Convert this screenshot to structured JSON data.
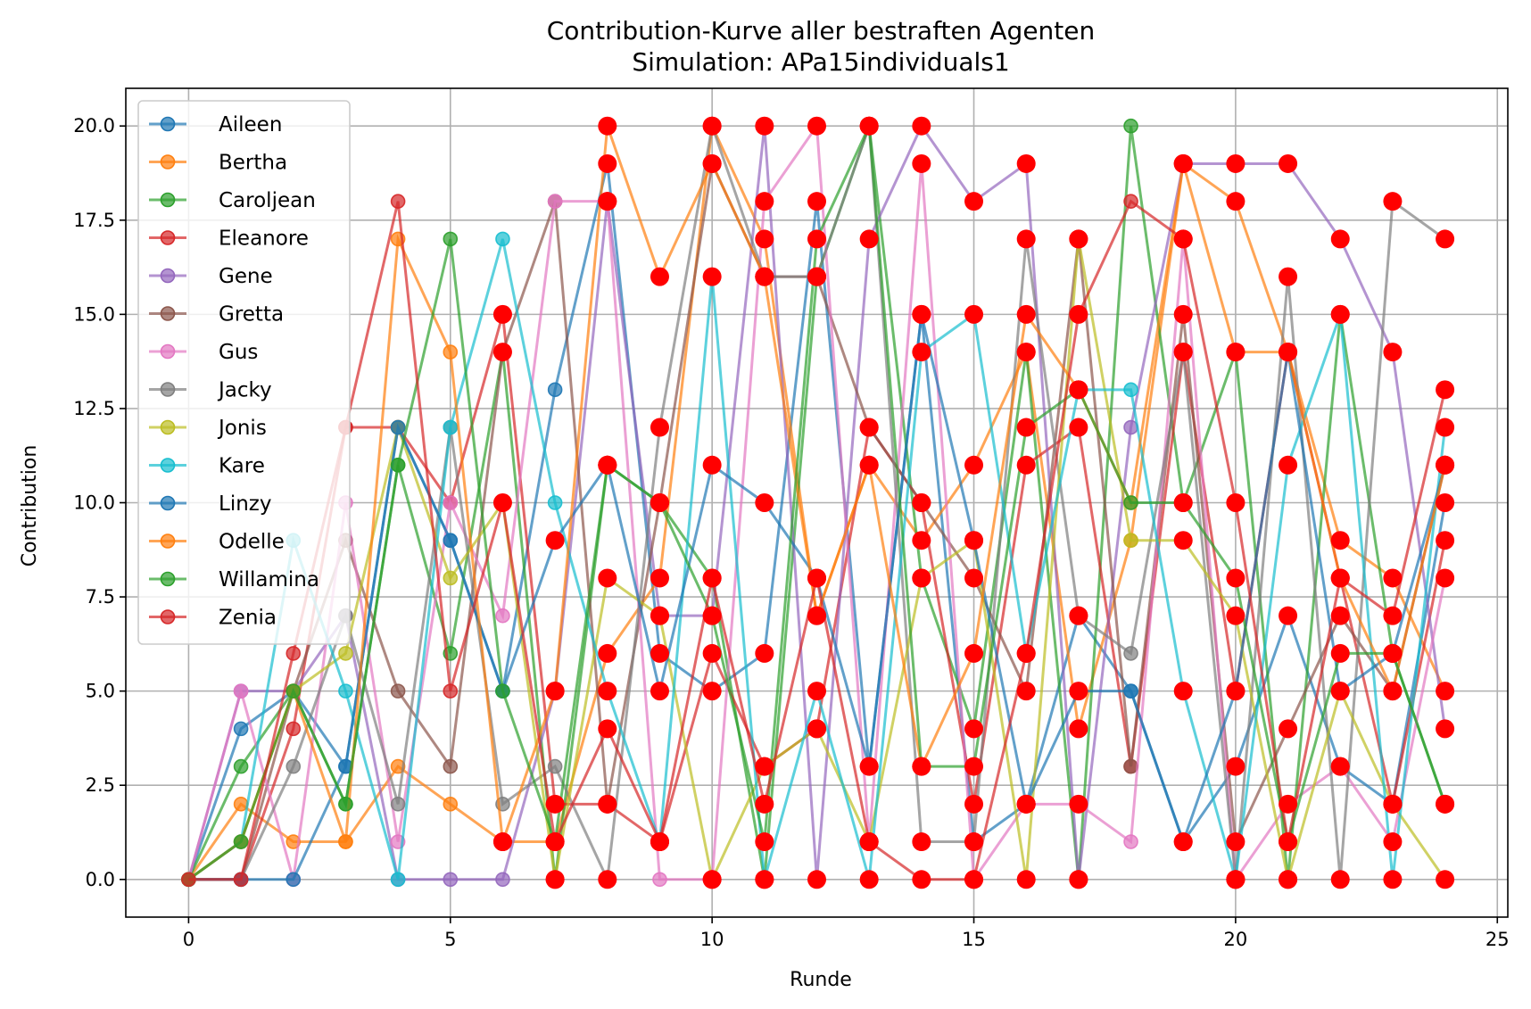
{
  "chart_data": {
    "type": "line",
    "title": "Contribution-Kurve aller bestraften Agenten",
    "subtitle": "Simulation: APa15individuals1",
    "xlabel": "Runde",
    "ylabel": "Contribution",
    "xlim": [
      -1.2,
      25.2
    ],
    "ylim": [
      -1,
      21
    ],
    "xticks": [
      0,
      5,
      10,
      15,
      20,
      25
    ],
    "yticks": [
      0,
      2.5,
      5,
      7.5,
      10,
      12.5,
      15,
      17.5,
      20
    ],
    "xtick_labels": [
      "0",
      "5",
      "10",
      "15",
      "20",
      "25"
    ],
    "ytick_labels": [
      "0.0",
      "2.5",
      "5.0",
      "7.5",
      "10.0",
      "12.5",
      "15.0",
      "17.5",
      "20.0"
    ],
    "grid": true,
    "legend_position": "upper-left",
    "x": [
      0,
      1,
      2,
      3,
      4,
      5,
      6,
      7,
      8,
      9,
      10,
      11,
      12,
      13,
      14,
      15,
      16,
      17,
      18,
      19,
      20,
      21,
      22,
      23,
      24
    ],
    "series": [
      {
        "name": "Aileen",
        "color": "#1f77b4",
        "values": [
          0,
          4,
          5,
          3,
          12,
          9,
          5,
          13,
          19,
          6,
          5,
          6,
          18,
          3,
          15,
          1,
          2,
          7,
          5,
          1,
          3,
          7,
          3,
          2,
          10
        ],
        "punished": [
          8,
          9,
          10,
          11,
          12,
          13,
          14,
          15,
          16,
          17,
          19,
          20,
          21,
          22,
          23,
          24
        ]
      },
      {
        "name": "Bertha",
        "color": "#ff7f0e",
        "values": [
          0,
          2,
          1,
          1,
          3,
          2,
          1,
          1,
          6,
          8,
          20,
          17,
          7,
          11,
          9,
          11,
          14,
          4,
          9,
          19,
          18,
          14,
          9,
          8,
          5
        ],
        "punished": [
          6,
          7,
          8,
          9,
          10,
          11,
          12,
          13,
          14,
          15,
          16,
          17,
          19,
          20,
          21,
          22,
          23,
          24
        ]
      },
      {
        "name": "Caroljean",
        "color": "#2ca02c",
        "values": [
          0,
          3,
          5,
          2,
          11,
          6,
          14,
          0,
          11,
          10,
          8,
          0,
          16,
          20,
          8,
          4,
          14,
          0,
          20,
          10,
          14,
          0,
          15,
          6,
          2
        ],
        "punished": [
          7,
          8,
          9,
          10,
          11,
          12,
          13,
          14,
          15,
          16,
          17,
          19,
          20,
          21,
          22,
          23,
          24
        ]
      },
      {
        "name": "Eleanore",
        "color": "#d62728",
        "values": [
          0,
          0,
          4,
          12,
          12,
          10,
          15,
          2,
          2,
          1,
          6,
          3,
          4,
          12,
          10,
          2,
          11,
          12,
          3,
          14,
          5,
          14,
          8,
          2,
          9
        ],
        "punished": [
          6,
          7,
          8,
          9,
          10,
          11,
          12,
          13,
          14,
          15,
          16,
          17,
          19,
          20,
          21,
          22,
          23,
          24
        ]
      },
      {
        "name": "Gene",
        "color": "#9467bd",
        "values": [
          0,
          5,
          5,
          7,
          0,
          0,
          0,
          5,
          18,
          7,
          7,
          20,
          0,
          17,
          20,
          18,
          19,
          0,
          12,
          19,
          19,
          19,
          17,
          14,
          4
        ],
        "punished": [
          7,
          8,
          9,
          10,
          11,
          12,
          13,
          14,
          15,
          16,
          17,
          19,
          20,
          21,
          22,
          23,
          24
        ]
      },
      {
        "name": "Gretta",
        "color": "#8c564b",
        "values": [
          0,
          0,
          5,
          9,
          5,
          3,
          14,
          18,
          2,
          10,
          19,
          16,
          16,
          12,
          10,
          8,
          5,
          17,
          3,
          15,
          1,
          4,
          7,
          5,
          11
        ],
        "punished": [
          6,
          8,
          9,
          10,
          11,
          12,
          13,
          14,
          15,
          16,
          17,
          19,
          20,
          21,
          22,
          23,
          24
        ]
      },
      {
        "name": "Gus",
        "color": "#e377c2",
        "values": [
          0,
          5,
          0,
          10,
          1,
          10,
          7,
          18,
          18,
          0,
          0,
          18,
          20,
          1,
          19,
          0,
          2,
          2,
          1,
          17,
          0,
          2,
          3,
          1,
          8
        ],
        "punished": [
          8,
          10,
          11,
          12,
          13,
          14,
          15,
          16,
          17,
          19,
          20,
          21,
          22,
          23,
          24
        ]
      },
      {
        "name": "Jacky",
        "color": "#7f7f7f",
        "values": [
          0,
          0,
          3,
          7,
          2,
          12,
          2,
          3,
          0,
          12,
          20,
          16,
          16,
          20,
          1,
          1,
          17,
          7,
          6,
          14,
          0,
          16,
          0,
          18,
          17
        ],
        "punished": [
          8,
          9,
          10,
          11,
          12,
          13,
          14,
          15,
          16,
          17,
          19,
          20,
          21,
          22,
          23,
          24
        ]
      },
      {
        "name": "Jonis",
        "color": "#bcbd22",
        "values": [
          0,
          1,
          5,
          6,
          12,
          8,
          10,
          0,
          8,
          7,
          0,
          3,
          4,
          1,
          8,
          9,
          0,
          17,
          9,
          9,
          7,
          0,
          5,
          2,
          0
        ],
        "punished": [
          7,
          8,
          9,
          10,
          11,
          12,
          13,
          14,
          15,
          16,
          17,
          19,
          20,
          21,
          22,
          23,
          24
        ]
      },
      {
        "name": "Kare",
        "color": "#17becf",
        "values": [
          0,
          1,
          9,
          5,
          0,
          12,
          17,
          10,
          5,
          1,
          16,
          0,
          5,
          0,
          14,
          15,
          6,
          13,
          13,
          5,
          0,
          11,
          15,
          0,
          12
        ],
        "punished": [
          8,
          9,
          10,
          11,
          12,
          13,
          14,
          15,
          16,
          17,
          19,
          20,
          21,
          22,
          23,
          24
        ]
      },
      {
        "name": "Linzy",
        "color": "#1f77b4",
        "values": [
          0,
          0,
          0,
          3,
          12,
          9,
          5,
          9,
          11,
          5,
          11,
          10,
          8,
          3,
          15,
          9,
          2,
          5,
          5,
          1,
          5,
          14,
          5,
          6,
          11
        ],
        "punished": [
          7,
          8,
          9,
          10,
          11,
          12,
          13,
          14,
          15,
          16,
          17,
          19,
          20,
          21,
          22,
          23,
          24
        ]
      },
      {
        "name": "Odelle",
        "color": "#ff7f0e",
        "values": [
          0,
          1,
          5,
          1,
          17,
          14,
          1,
          5,
          20,
          16,
          19,
          16,
          7,
          11,
          3,
          6,
          15,
          13,
          10,
          19,
          14,
          14,
          8,
          5,
          11
        ],
        "punished": [
          6,
          7,
          8,
          9,
          10,
          11,
          12,
          13,
          14,
          15,
          16,
          17,
          19,
          20,
          21,
          22,
          23,
          24
        ]
      },
      {
        "name": "Willamina",
        "color": "#2ca02c",
        "values": [
          0,
          1,
          5,
          2,
          11,
          17,
          5,
          1,
          11,
          10,
          7,
          1,
          17,
          20,
          3,
          3,
          12,
          13,
          10,
          10,
          8,
          1,
          6,
          6,
          2
        ],
        "punished": [
          7,
          8,
          9,
          10,
          11,
          12,
          13,
          14,
          15,
          16,
          17,
          19,
          20,
          21,
          22,
          23,
          24
        ]
      },
      {
        "name": "Zenia",
        "color": "#d62728",
        "values": [
          0,
          0,
          6,
          12,
          18,
          5,
          10,
          1,
          4,
          1,
          8,
          2,
          8,
          1,
          0,
          0,
          6,
          15,
          18,
          17,
          10,
          1,
          8,
          7,
          13
        ],
        "punished": [
          6,
          7,
          8,
          9,
          10,
          11,
          12,
          13,
          14,
          15,
          16,
          17,
          19,
          20,
          21,
          22,
          23,
          24
        ]
      }
    ],
    "punishment_marker_color": "#ff0000"
  }
}
